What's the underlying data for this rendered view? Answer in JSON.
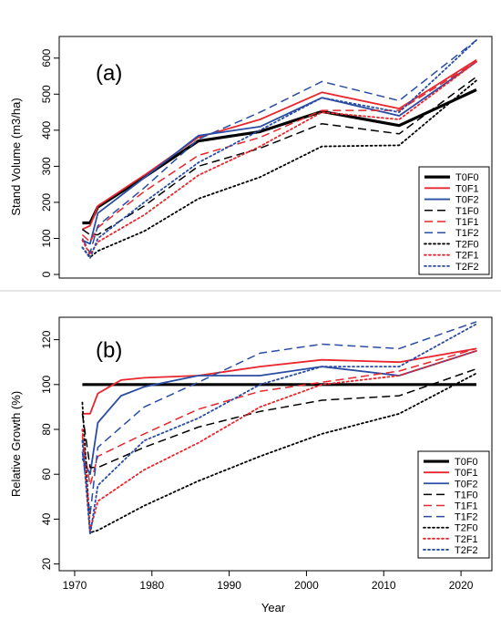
{
  "chart_data": [
    {
      "type": "line",
      "panel_label": "(a)",
      "xlabel": "",
      "ylabel": "Stand Volume (m3/ha)",
      "xlim": [
        1968,
        2024
      ],
      "ylim": [
        -10,
        660
      ],
      "xticks": [
        1970,
        1980,
        1990,
        2000,
        2010,
        2020
      ],
      "yticks": [
        0,
        100,
        200,
        300,
        400,
        500,
        600
      ],
      "legend_position": "bottom-right",
      "series": [
        {
          "name": "T0F0",
          "color": "#000000",
          "dash": "solid",
          "width": 3.2,
          "x": [
            1971,
            1972,
            1973,
            1979,
            1986,
            1994,
            2002,
            2012,
            2022
          ],
          "y": [
            143,
            143,
            187,
            270,
            370,
            396,
            452,
            413,
            512
          ]
        },
        {
          "name": "T0F1",
          "color": "#e8262d",
          "dash": "solid",
          "width": 1.8,
          "x": [
            1971,
            1972,
            1973,
            1979,
            1986,
            1994,
            2002,
            2012,
            2022
          ],
          "y": [
            125,
            135,
            190,
            275,
            380,
            430,
            505,
            460,
            595
          ]
        },
        {
          "name": "T0F2",
          "color": "#2a4da3",
          "dash": "solid",
          "width": 1.8,
          "x": [
            1971,
            1972,
            1973,
            1979,
            1986,
            1994,
            2002,
            2012,
            2022
          ],
          "y": [
            95,
            85,
            170,
            268,
            385,
            410,
            490,
            440,
            590
          ]
        },
        {
          "name": "T1F0",
          "color": "#000000",
          "dash": "longdash",
          "width": 1.5,
          "x": [
            1971,
            1972,
            1973,
            1979,
            1986,
            1994,
            2002,
            2012,
            2022
          ],
          "y": [
            125,
            110,
            110,
            190,
            300,
            350,
            418,
            390,
            548
          ]
        },
        {
          "name": "T1F1",
          "color": "#e8262d",
          "dash": "longdash",
          "width": 1.5,
          "x": [
            1971,
            1972,
            1973,
            1979,
            1986,
            1994,
            2002,
            2012,
            2022
          ],
          "y": [
            110,
            90,
            130,
            230,
            330,
            380,
            455,
            455,
            590
          ]
        },
        {
          "name": "T1F2",
          "color": "#2a4da3",
          "dash": "longdash",
          "width": 1.5,
          "x": [
            1971,
            1972,
            1973,
            1979,
            1986,
            1994,
            2002,
            2012,
            2022
          ],
          "y": [
            100,
            60,
            135,
            240,
            375,
            450,
            535,
            482,
            650
          ]
        },
        {
          "name": "T2F0",
          "color": "#000000",
          "dash": "dotted",
          "width": 1.8,
          "x": [
            1971,
            1972,
            1973,
            1979,
            1986,
            1994,
            2002,
            2012,
            2022
          ],
          "y": [
            75,
            48,
            65,
            120,
            210,
            270,
            355,
            358,
            538
          ]
        },
        {
          "name": "T2F1",
          "color": "#e8262d",
          "dash": "dotted",
          "width": 1.8,
          "x": [
            1971,
            1972,
            1973,
            1979,
            1986,
            1994,
            2002,
            2012,
            2022
          ],
          "y": [
            95,
            55,
            90,
            165,
            275,
            355,
            450,
            430,
            590
          ]
        },
        {
          "name": "T2F2",
          "color": "#2a4da3",
          "dash": "dotted",
          "width": 1.8,
          "x": [
            1971,
            1972,
            1973,
            1979,
            1986,
            1994,
            2002,
            2012,
            2022
          ],
          "y": [
            75,
            45,
            100,
            200,
            310,
            400,
            490,
            450,
            650
          ]
        }
      ]
    },
    {
      "type": "line",
      "panel_label": "(b)",
      "xlabel": "Year",
      "ylabel": "Relative Growth (%)",
      "xlim": [
        1968,
        2024
      ],
      "ylim": [
        17,
        130
      ],
      "xticks": [
        1970,
        1980,
        1990,
        2000,
        2010,
        2020
      ],
      "yticks": [
        20,
        40,
        60,
        80,
        100,
        120
      ],
      "legend_position": "bottom-right",
      "series": [
        {
          "name": "T0F0",
          "color": "#000000",
          "dash": "solid",
          "width": 3.2,
          "x": [
            1971,
            2022
          ],
          "y": [
            100,
            100
          ]
        },
        {
          "name": "T0F1",
          "color": "#e8262d",
          "dash": "solid",
          "width": 1.8,
          "x": [
            1971,
            1972,
            1973,
            1976,
            1979,
            1986,
            1994,
            2002,
            2012,
            2022
          ],
          "y": [
            87,
            87,
            96,
            102,
            103,
            104,
            108,
            111,
            110,
            116
          ]
        },
        {
          "name": "T0F2",
          "color": "#2a4da3",
          "dash": "solid",
          "width": 1.8,
          "x": [
            1971,
            1972,
            1973,
            1976,
            1979,
            1986,
            1994,
            2002,
            2012,
            2022
          ],
          "y": [
            67,
            60,
            83,
            95,
            99,
            104,
            104,
            108,
            104,
            115
          ]
        },
        {
          "name": "T1F0",
          "color": "#000000",
          "dash": "longdash",
          "width": 1.5,
          "x": [
            1971,
            1972,
            1973,
            1979,
            1986,
            1994,
            2002,
            2012,
            2022
          ],
          "y": [
            87,
            63,
            63,
            72,
            81,
            88,
            93,
            95,
            107
          ]
        },
        {
          "name": "T1F1",
          "color": "#e8262d",
          "dash": "longdash",
          "width": 1.5,
          "x": [
            1971,
            1972,
            1973,
            1979,
            1986,
            1994,
            2002,
            2012,
            2022
          ],
          "y": [
            77,
            55,
            68,
            78,
            89,
            97,
            101,
            106,
            116
          ]
        },
        {
          "name": "T1F2",
          "color": "#2a4da3",
          "dash": "longdash",
          "width": 1.5,
          "x": [
            1971,
            1972,
            1973,
            1979,
            1986,
            1994,
            2002,
            2012,
            2022
          ],
          "y": [
            70,
            42,
            72,
            90,
            101,
            114,
            118,
            116,
            128
          ]
        },
        {
          "name": "T2F0",
          "color": "#000000",
          "dash": "dotted",
          "width": 1.8,
          "x": [
            1971,
            1972,
            1973,
            1979,
            1986,
            1994,
            2002,
            2012,
            2022
          ],
          "y": [
            92,
            34,
            35,
            46,
            57,
            68,
            78,
            87,
            105
          ]
        },
        {
          "name": "T2F1",
          "color": "#e8262d",
          "dash": "dotted",
          "width": 1.8,
          "x": [
            1971,
            1972,
            1973,
            1979,
            1986,
            1994,
            2002,
            2012,
            2022
          ],
          "y": [
            80,
            35,
            48,
            62,
            74,
            90,
            100,
            104,
            115
          ]
        },
        {
          "name": "T2F2",
          "color": "#2a4da3",
          "dash": "dotted",
          "width": 1.8,
          "x": [
            1971,
            1972,
            1973,
            1979,
            1986,
            1994,
            2002,
            2012,
            2022
          ],
          "y": [
            75,
            33,
            55,
            75,
            85,
            100,
            108,
            108,
            127
          ]
        }
      ]
    }
  ]
}
